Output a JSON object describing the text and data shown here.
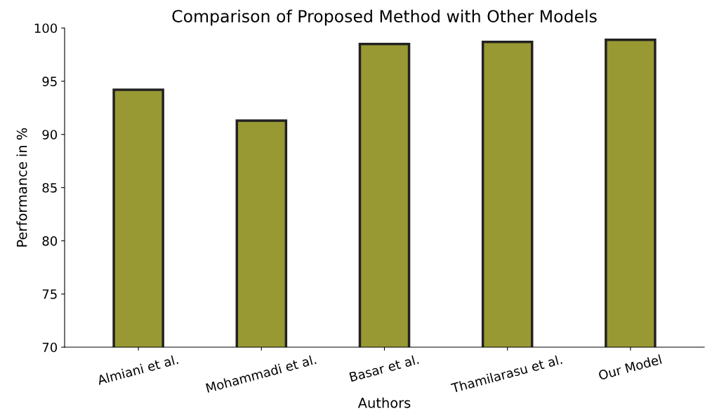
{
  "chart_data": {
    "type": "bar",
    "title": "Comparison of Proposed Method with Other Models",
    "xlabel": "Authors",
    "ylabel": "Performance in %",
    "categories": [
      "Almiani et al.",
      "Mohammadi et al.",
      "Basar et al.",
      "Thamilarasu et al.",
      "Our Model"
    ],
    "values": [
      94.2,
      91.3,
      98.5,
      98.7,
      98.9
    ],
    "color": "#999933",
    "ylim": [
      70,
      100
    ],
    "yticks": [
      70,
      75,
      80,
      85,
      90,
      95,
      100
    ],
    "grid": false,
    "legend": false
  }
}
